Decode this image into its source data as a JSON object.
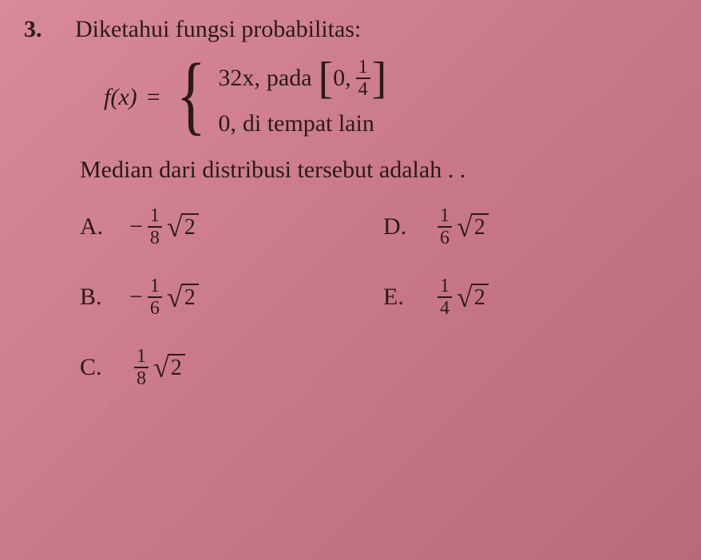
{
  "question": {
    "number": "3.",
    "text": "Diketahui fungsi probabilitas:"
  },
  "formula": {
    "lhs": "f(x)",
    "eq": "=",
    "case1_expr": "32x,",
    "case1_word": "pada",
    "interval_start": "0,",
    "interval_frac_num": "1",
    "interval_frac_den": "4",
    "case2_zero": "0,",
    "case2_text": "di tempat lain"
  },
  "median_text": "Median dari distribusi tersebut adalah . .",
  "options": {
    "A": {
      "label": "A.",
      "sign": "−",
      "num": "1",
      "den": "8",
      "rad": "2"
    },
    "B": {
      "label": "B.",
      "sign": "−",
      "num": "1",
      "den": "6",
      "rad": "2"
    },
    "C": {
      "label": "C.",
      "sign": "",
      "num": "1",
      "den": "8",
      "rad": "2"
    },
    "D": {
      "label": "D.",
      "sign": "",
      "num": "1",
      "den": "6",
      "rad": "2"
    },
    "E": {
      "label": "E.",
      "sign": "",
      "num": "1",
      "den": "4",
      "rad": "2"
    }
  },
  "style": {
    "bg_gradient_from": "#d88a9a",
    "bg_gradient_to": "#b86a7c",
    "text_color": "#2a1a1a",
    "base_fontsize": 30,
    "frac_fontsize": 24,
    "font_family": "Georgia, Times New Roman, serif"
  }
}
